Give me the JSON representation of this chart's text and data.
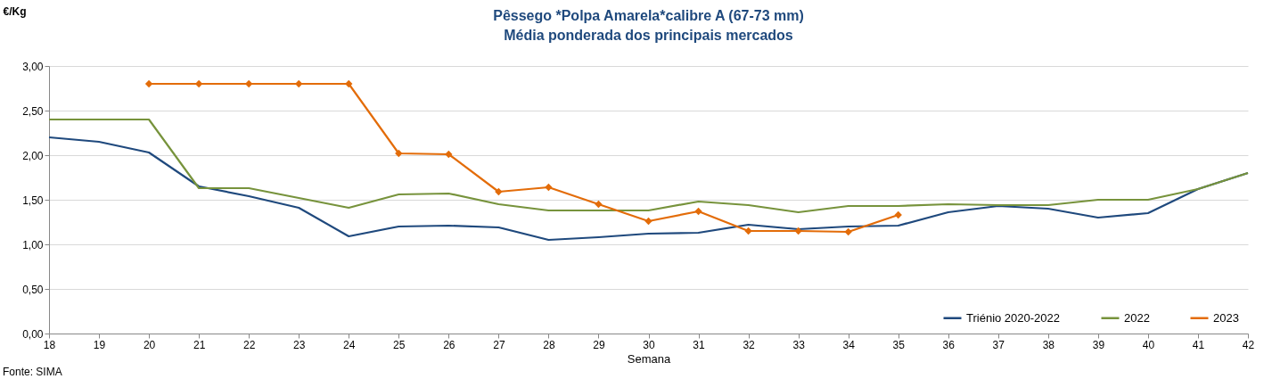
{
  "chart_data": {
    "type": "line",
    "title": "Pêssego *Polpa Amarela*calibre A (67-73 mm)",
    "subtitle": "Média ponderada dos principais mercados",
    "xlabel": "Semana",
    "ylabel": "€/Kg",
    "annotations": [
      "Fonte: SIMA"
    ],
    "x": [
      18,
      19,
      20,
      21,
      22,
      23,
      24,
      25,
      26,
      27,
      28,
      29,
      30,
      31,
      32,
      33,
      34,
      35,
      36,
      37,
      38,
      39,
      40,
      41,
      42
    ],
    "series": [
      {
        "name": "Triénio 2020-2022",
        "color": "#1f497d",
        "values": [
          2.2,
          2.15,
          2.03,
          1.65,
          1.54,
          1.41,
          1.09,
          1.2,
          1.21,
          1.19,
          1.05,
          1.08,
          1.12,
          1.13,
          1.22,
          1.17,
          1.2,
          1.21,
          1.36,
          1.43,
          1.4,
          1.3,
          1.35,
          1.62,
          1.8
        ]
      },
      {
        "name": "2022",
        "color": "#77933c",
        "values": [
          2.4,
          2.4,
          2.4,
          1.63,
          1.63,
          1.52,
          1.41,
          1.56,
          1.57,
          1.45,
          1.38,
          1.38,
          1.38,
          1.48,
          1.44,
          1.36,
          1.43,
          1.43,
          1.45,
          1.44,
          1.44,
          1.5,
          1.5,
          1.62,
          1.8
        ]
      },
      {
        "name": "2023",
        "color": "#e36c09",
        "marker": "diamond",
        "values": [
          null,
          null,
          2.8,
          2.8,
          2.8,
          2.8,
          2.8,
          2.02,
          2.01,
          1.59,
          1.64,
          1.45,
          1.26,
          1.37,
          1.15,
          1.15,
          1.14,
          1.33,
          null,
          null,
          null,
          null,
          null,
          null,
          null
        ]
      }
    ],
    "xlim": [
      18,
      42
    ],
    "xticks": [
      18,
      19,
      20,
      21,
      22,
      23,
      24,
      25,
      26,
      27,
      28,
      29,
      30,
      31,
      32,
      33,
      34,
      35,
      36,
      37,
      38,
      39,
      40,
      41,
      42
    ],
    "ylim": [
      0,
      3
    ],
    "yticks": [
      {
        "value": 0,
        "label": "0,00"
      },
      {
        "value": 0.5,
        "label": "0,50"
      },
      {
        "value": 1,
        "label": "1,00"
      },
      {
        "value": 1.5,
        "label": "1,50"
      },
      {
        "value": 2,
        "label": "2,00"
      },
      {
        "value": 2.5,
        "label": "2,50"
      },
      {
        "value": 3,
        "label": "3,00"
      }
    ],
    "grid": "y",
    "legend": "bottom right",
    "line_style": "solid"
  }
}
